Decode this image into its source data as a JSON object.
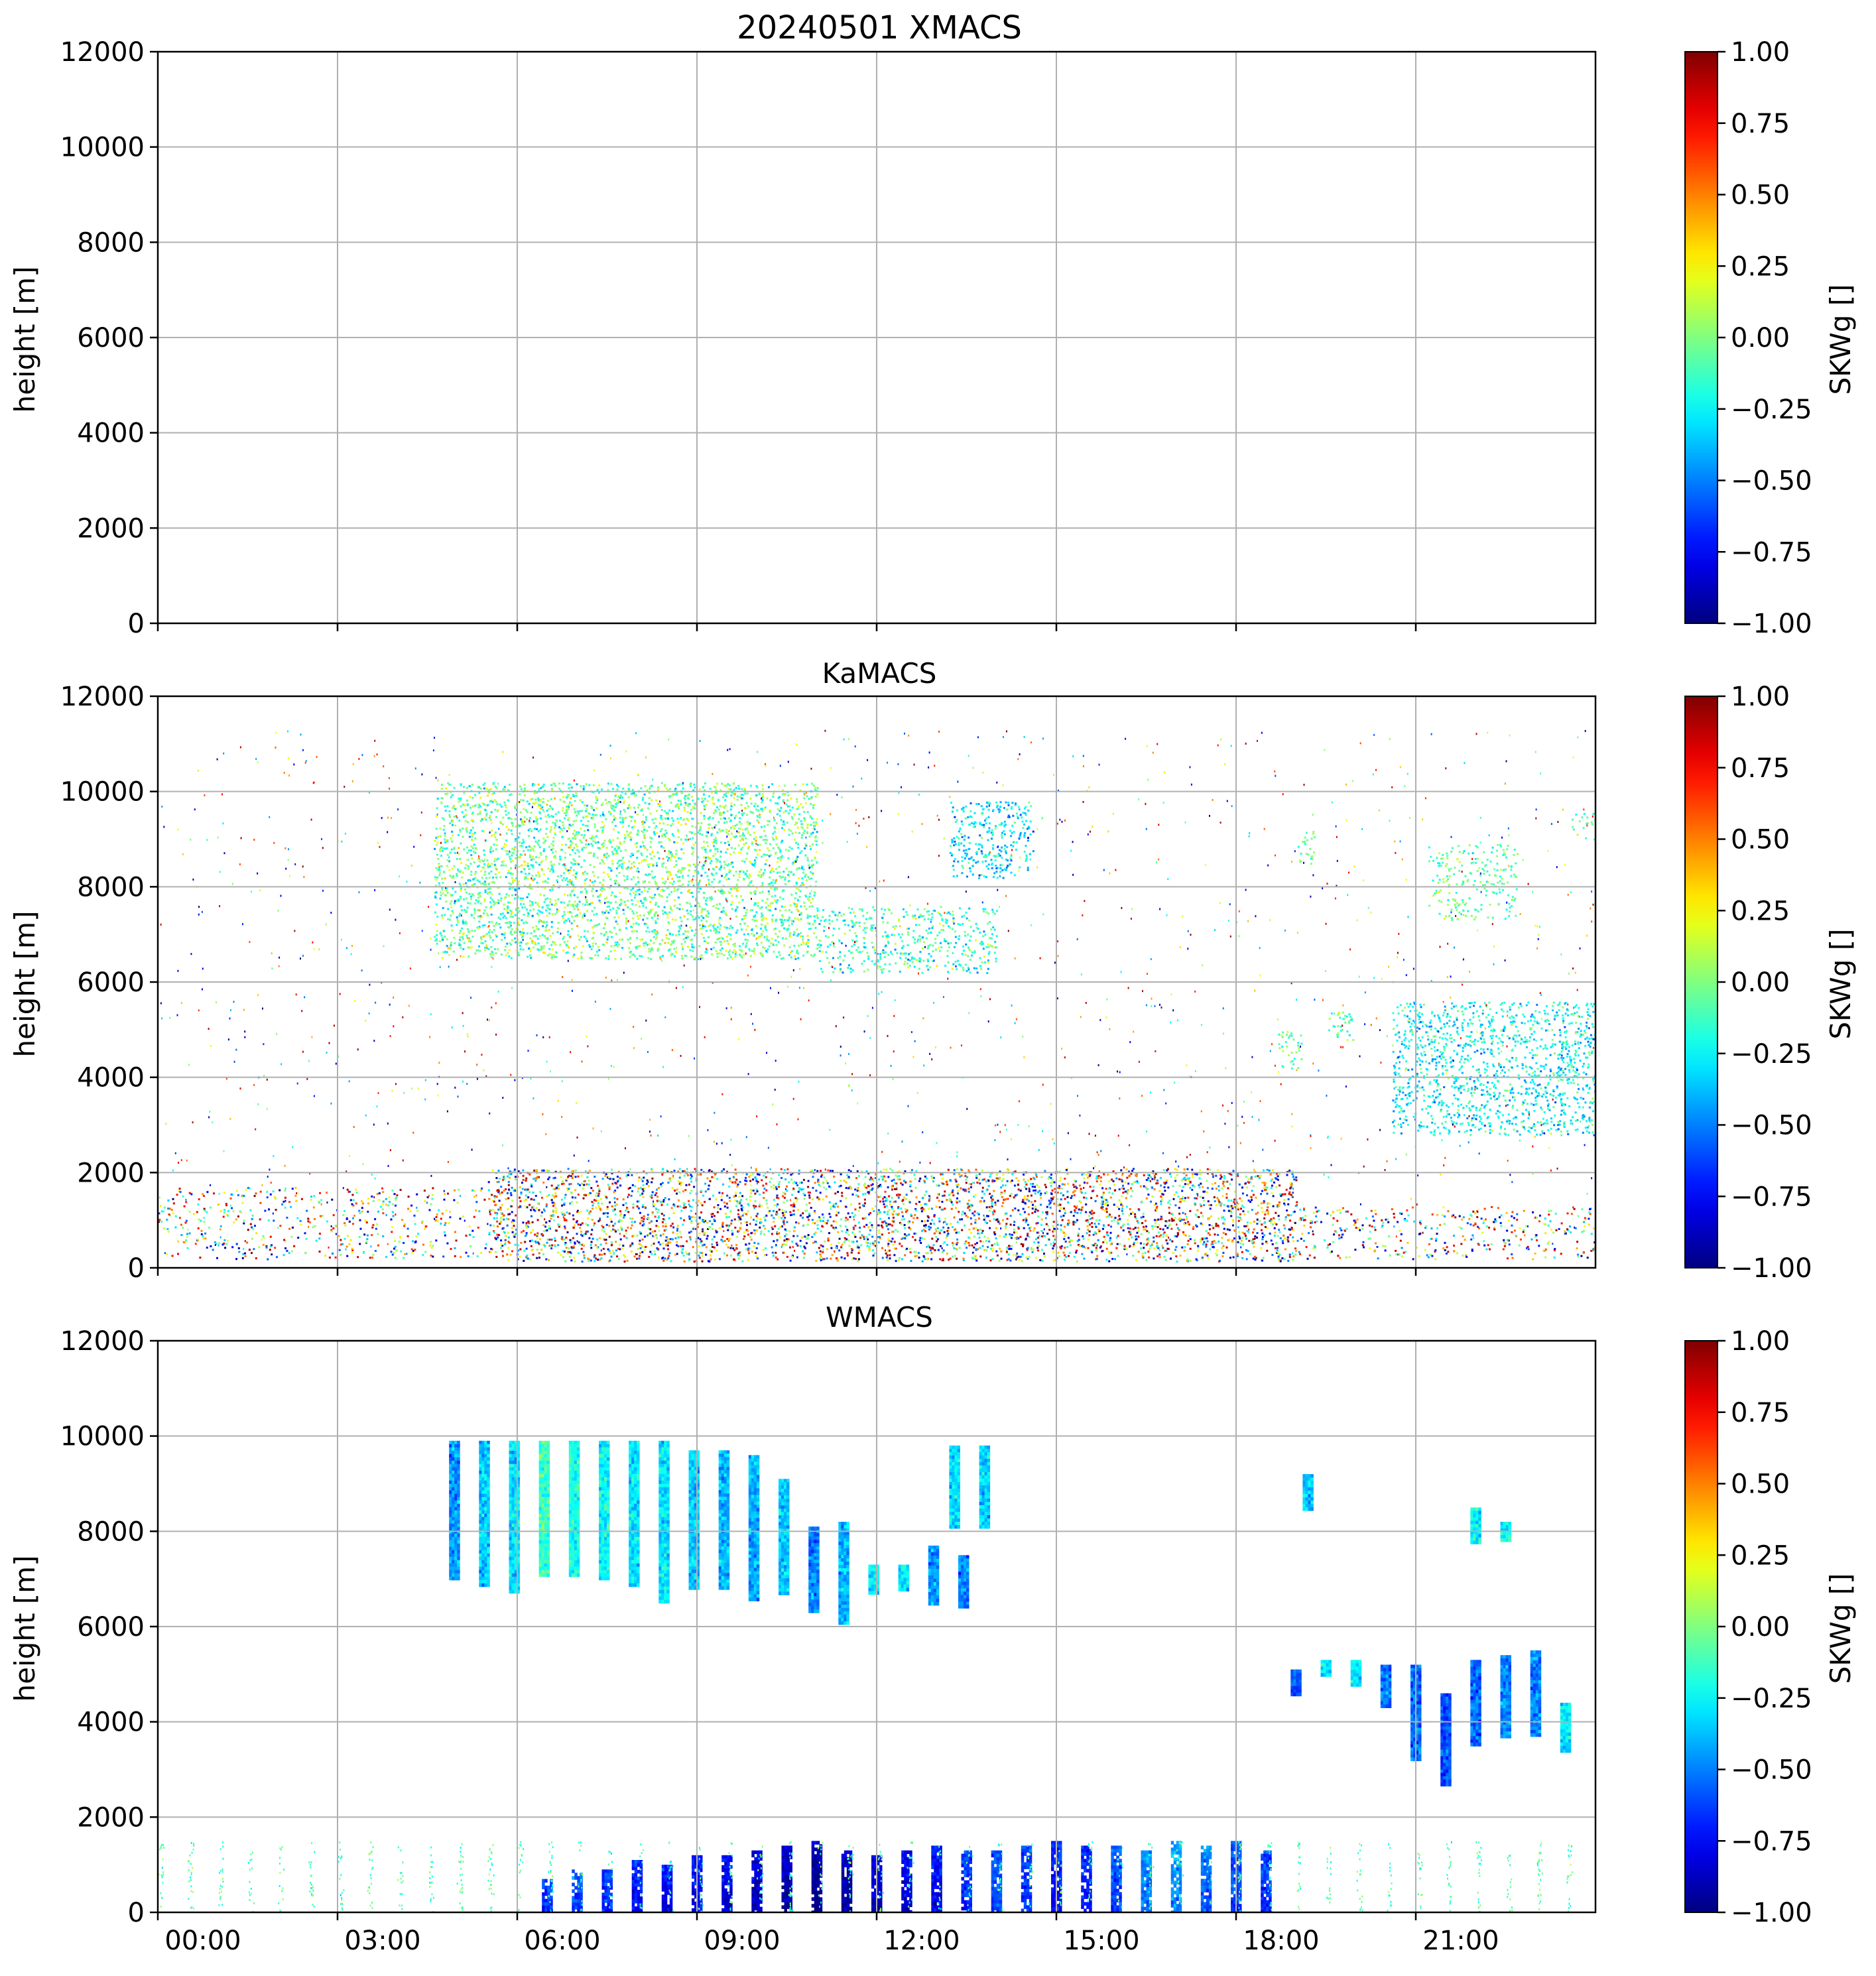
{
  "figure": {
    "date": "20240501",
    "colormap": "jet"
  },
  "chart_data": [
    {
      "type": "heatmap",
      "title": "20240501 XMACS",
      "xlabel": "",
      "ylabel": "height [m]",
      "x_tick_labels": [],
      "y_ticks": [
        0,
        2000,
        4000,
        6000,
        8000,
        10000,
        12000
      ],
      "ylim": [
        0,
        12000
      ],
      "xlim_hours": [
        0,
        24
      ],
      "grid": true,
      "colorbar": {
        "label": "SKWg []",
        "range": [
          -1.0,
          1.0
        ],
        "ticks": [
          "1.00",
          "0.75",
          "0.50",
          "0.25",
          "0.00",
          "−0.25",
          "−0.50",
          "−0.75",
          "−1.00"
        ]
      },
      "regions": []
    },
    {
      "type": "heatmap",
      "title": "KaMACS",
      "xlabel": "",
      "ylabel": "height [m]",
      "x_tick_labels": [],
      "y_ticks": [
        0,
        2000,
        4000,
        6000,
        8000,
        10000,
        12000
      ],
      "ylim": [
        0,
        12000
      ],
      "xlim_hours": [
        0,
        24
      ],
      "grid": true,
      "colorbar": {
        "label": "SKWg []",
        "range": [
          -1.0,
          1.0
        ],
        "ticks": [
          "1.00",
          "0.75",
          "0.50",
          "0.25",
          "0.00",
          "−0.25",
          "−0.50",
          "−0.75",
          "−1.00"
        ]
      },
      "regions": [
        {
          "name": "upper-cloud",
          "t_start": 4.6,
          "t_end": 11.0,
          "h_bottom": 6500,
          "h_top": 10200,
          "mean": -0.05,
          "spread": 0.55,
          "density": 0.95
        },
        {
          "name": "upper-cloud-tail",
          "t_start": 11.0,
          "t_end": 14.0,
          "h_bottom": 6200,
          "h_top": 7600,
          "mean": -0.15,
          "spread": 0.5,
          "density": 0.7
        },
        {
          "name": "upper-cloud-patch",
          "t_start": 13.2,
          "t_end": 14.6,
          "h_bottom": 8200,
          "h_top": 9800,
          "mean": -0.3,
          "spread": 0.45,
          "density": 0.85
        },
        {
          "name": "cirrus-1",
          "t_start": 19.0,
          "t_end": 19.3,
          "h_bottom": 8500,
          "h_top": 9200,
          "mean": 0.0,
          "spread": 0.3,
          "density": 0.7
        },
        {
          "name": "cirrus-2",
          "t_start": 21.2,
          "t_end": 22.7,
          "h_bottom": 7300,
          "h_top": 8900,
          "mean": -0.05,
          "spread": 0.35,
          "density": 0.55
        },
        {
          "name": "cirrus-3",
          "t_start": 23.6,
          "t_end": 24.0,
          "h_bottom": 9000,
          "h_top": 9600,
          "mean": -0.05,
          "spread": 0.3,
          "density": 0.5
        },
        {
          "name": "mid-cloud-a",
          "t_start": 18.7,
          "t_end": 19.1,
          "h_bottom": 4200,
          "h_top": 5000,
          "mean": -0.1,
          "spread": 0.35,
          "density": 0.7
        },
        {
          "name": "mid-cloud-b",
          "t_start": 19.5,
          "t_end": 20.0,
          "h_bottom": 4800,
          "h_top": 5400,
          "mean": -0.1,
          "spread": 0.35,
          "density": 0.7
        },
        {
          "name": "mid-cloud-c",
          "t_start": 20.6,
          "t_end": 24.0,
          "h_bottom": 2800,
          "h_top": 5600,
          "mean": -0.25,
          "spread": 0.45,
          "density": 0.85
        },
        {
          "name": "boundary-layer",
          "t_start": 5.5,
          "t_end": 19.0,
          "h_bottom": 150,
          "h_top": 2100,
          "mean": 0.0,
          "spread": 1.0,
          "density": 0.9
        },
        {
          "name": "boundary-layer-early",
          "t_start": 0.0,
          "t_end": 5.5,
          "h_bottom": 200,
          "h_top": 1700,
          "mean": 0.0,
          "spread": 1.0,
          "density": 0.35
        },
        {
          "name": "boundary-layer-late",
          "t_start": 19.0,
          "t_end": 24.0,
          "h_bottom": 200,
          "h_top": 1300,
          "mean": 0.0,
          "spread": 1.0,
          "density": 0.4
        }
      ]
    },
    {
      "type": "heatmap",
      "title": "WMACS",
      "xlabel": "",
      "ylabel": "height [m]",
      "x_tick_labels": [
        "00:00",
        "03:00",
        "06:00",
        "09:00",
        "12:00",
        "15:00",
        "18:00",
        "21:00"
      ],
      "x_tick_hours": [
        0.5,
        3.5,
        6.5,
        9.5,
        12.5,
        15.5,
        18.5,
        21.5
      ],
      "y_ticks": [
        0,
        2000,
        4000,
        6000,
        8000,
        10000,
        12000
      ],
      "ylim": [
        0,
        12000
      ],
      "xlim_hours": [
        0,
        24
      ],
      "grid": true,
      "colorbar": {
        "label": "SKWg []",
        "range": [
          -1.0,
          1.0
        ],
        "ticks": [
          "1.00",
          "0.75",
          "0.50",
          "0.25",
          "0.00",
          "−0.25",
          "−0.50",
          "−0.75",
          "−1.00"
        ]
      },
      "stripes": [
        {
          "t": 4.95,
          "h_bottom": 7000,
          "h_top": 9900,
          "mean": -0.45
        },
        {
          "t": 5.45,
          "h_bottom": 6900,
          "h_top": 9900,
          "mean": -0.35
        },
        {
          "t": 5.95,
          "h_bottom": 6700,
          "h_top": 9900,
          "mean": -0.3
        },
        {
          "t": 6.45,
          "h_bottom": 7100,
          "h_top": 9900,
          "mean": -0.15
        },
        {
          "t": 6.95,
          "h_bottom": 7100,
          "h_top": 9900,
          "mean": -0.2
        },
        {
          "t": 7.45,
          "h_bottom": 7000,
          "h_top": 9900,
          "mean": -0.25
        },
        {
          "t": 7.95,
          "h_bottom": 6900,
          "h_top": 9900,
          "mean": -0.3
        },
        {
          "t": 8.45,
          "h_bottom": 6500,
          "h_top": 9900,
          "mean": -0.3
        },
        {
          "t": 8.95,
          "h_bottom": 6800,
          "h_top": 9700,
          "mean": -0.35
        },
        {
          "t": 9.45,
          "h_bottom": 6800,
          "h_top": 9700,
          "mean": -0.4
        },
        {
          "t": 9.95,
          "h_bottom": 6600,
          "h_top": 9600,
          "mean": -0.4
        },
        {
          "t": 10.45,
          "h_bottom": 6700,
          "h_top": 9100,
          "mean": -0.35
        },
        {
          "t": 10.95,
          "h_bottom": 6300,
          "h_top": 8100,
          "mean": -0.5
        },
        {
          "t": 11.45,
          "h_bottom": 6100,
          "h_top": 8200,
          "mean": -0.4
        },
        {
          "t": 11.95,
          "h_bottom": 6700,
          "h_top": 7300,
          "mean": -0.3
        },
        {
          "t": 12.45,
          "h_bottom": 6800,
          "h_top": 7300,
          "mean": -0.3
        },
        {
          "t": 12.95,
          "h_bottom": 6500,
          "h_top": 7700,
          "mean": -0.45
        },
        {
          "t": 13.45,
          "h_bottom": 6400,
          "h_top": 7500,
          "mean": -0.5
        },
        {
          "t": 13.3,
          "h_bottom": 8100,
          "h_top": 9800,
          "mean": -0.3
        },
        {
          "t": 13.8,
          "h_bottom": 8100,
          "h_top": 9800,
          "mean": -0.35
        },
        {
          "t": 19.0,
          "h_bottom": 4600,
          "h_top": 5100,
          "mean": -0.6
        },
        {
          "t": 19.5,
          "h_bottom": 5000,
          "h_top": 5300,
          "mean": -0.3
        },
        {
          "t": 20.0,
          "h_bottom": 4800,
          "h_top": 5300,
          "mean": -0.3
        },
        {
          "t": 20.5,
          "h_bottom": 4300,
          "h_top": 5200,
          "mean": -0.5
        },
        {
          "t": 21.0,
          "h_bottom": 3200,
          "h_top": 5200,
          "mean": -0.55
        },
        {
          "t": 21.5,
          "h_bottom": 2700,
          "h_top": 4600,
          "mean": -0.6
        },
        {
          "t": 22.0,
          "h_bottom": 3500,
          "h_top": 5300,
          "mean": -0.55
        },
        {
          "t": 22.5,
          "h_bottom": 3700,
          "h_top": 5400,
          "mean": -0.5
        },
        {
          "t": 23.0,
          "h_bottom": 3700,
          "h_top": 5500,
          "mean": -0.5
        },
        {
          "t": 23.5,
          "h_bottom": 3400,
          "h_top": 4400,
          "mean": -0.3
        },
        {
          "t": 22.0,
          "h_bottom": 7800,
          "h_top": 8500,
          "mean": -0.25
        },
        {
          "t": 22.5,
          "h_bottom": 7800,
          "h_top": 8200,
          "mean": -0.25
        },
        {
          "t": 19.2,
          "h_bottom": 8500,
          "h_top": 9200,
          "mean": -0.35
        }
      ],
      "bl_bars": [
        {
          "t": 6.5,
          "h_top": 700,
          "mean": -0.6
        },
        {
          "t": 7.0,
          "h_top": 900,
          "mean": -0.55
        },
        {
          "t": 7.5,
          "h_top": 900,
          "mean": -0.6
        },
        {
          "t": 8.0,
          "h_top": 1100,
          "mean": -0.65
        },
        {
          "t": 8.5,
          "h_top": 1000,
          "mean": -0.7
        },
        {
          "t": 9.0,
          "h_top": 1200,
          "mean": -0.7
        },
        {
          "t": 9.5,
          "h_top": 1200,
          "mean": -0.75
        },
        {
          "t": 10.0,
          "h_top": 1300,
          "mean": -0.8
        },
        {
          "t": 10.5,
          "h_top": 1400,
          "mean": -0.85
        },
        {
          "t": 11.0,
          "h_top": 1500,
          "mean": -0.9
        },
        {
          "t": 11.5,
          "h_top": 1300,
          "mean": -0.85
        },
        {
          "t": 12.0,
          "h_top": 1200,
          "mean": -0.8
        },
        {
          "t": 12.5,
          "h_top": 1300,
          "mean": -0.75
        },
        {
          "t": 13.0,
          "h_top": 1400,
          "mean": -0.7
        },
        {
          "t": 13.5,
          "h_top": 1300,
          "mean": -0.6
        },
        {
          "t": 14.0,
          "h_top": 1300,
          "mean": -0.55
        },
        {
          "t": 14.5,
          "h_top": 1400,
          "mean": -0.6
        },
        {
          "t": 15.0,
          "h_top": 1500,
          "mean": -0.65
        },
        {
          "t": 15.5,
          "h_top": 1400,
          "mean": -0.65
        },
        {
          "t": 16.0,
          "h_top": 1400,
          "mean": -0.55
        },
        {
          "t": 16.5,
          "h_top": 1300,
          "mean": -0.45
        },
        {
          "t": 17.0,
          "h_top": 1500,
          "mean": -0.4
        },
        {
          "t": 17.5,
          "h_top": 1400,
          "mean": -0.5
        },
        {
          "t": 18.0,
          "h_top": 1500,
          "mean": -0.55
        },
        {
          "t": 18.5,
          "h_top": 1300,
          "mean": -0.6
        }
      ]
    }
  ]
}
